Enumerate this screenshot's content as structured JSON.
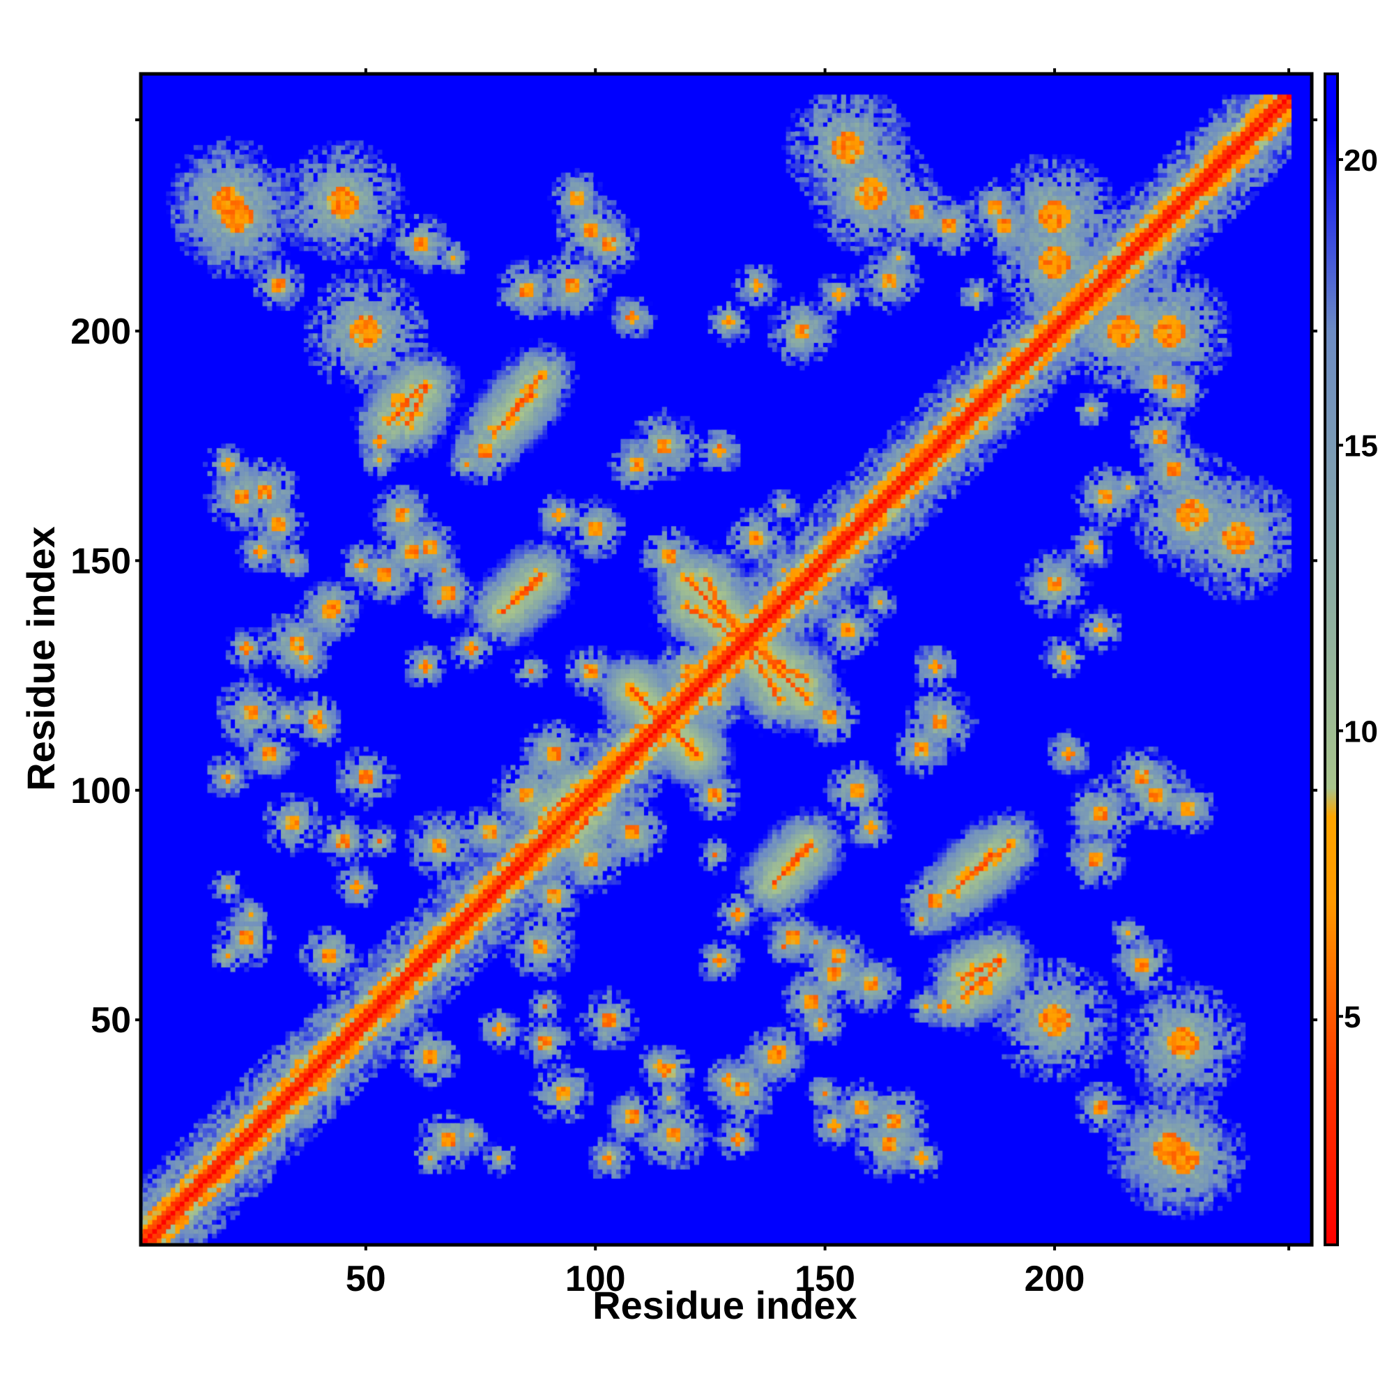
{
  "chart_data": {
    "type": "heatmap",
    "title": "",
    "xlabel": "Residue index",
    "ylabel": "Residue index",
    "n_residues": 251,
    "xlim": [
      1,
      256
    ],
    "ylim": [
      1,
      256
    ],
    "x_ticks": [
      50,
      100,
      150,
      200
    ],
    "y_ticks": [
      50,
      100,
      150,
      200
    ],
    "colorbar": {
      "ticks": [
        5,
        10,
        15,
        20
      ],
      "range": [
        1,
        21.5
      ],
      "colors": [
        {
          "value": 1,
          "color": "#ff0000"
        },
        {
          "value": 4,
          "color": "#ff3a00"
        },
        {
          "value": 7,
          "color": "#ff9900"
        },
        {
          "value": 8.5,
          "color": "#ffa500"
        },
        {
          "value": 9,
          "color": "#a8c48c"
        },
        {
          "value": 12,
          "color": "#8fb0a0"
        },
        {
          "value": 17,
          "color": "#6d8cc4"
        },
        {
          "value": 20.5,
          "color": "#0000ff"
        }
      ],
      "background_color": "#0000ff"
    },
    "contact_features": [
      {
        "kind": "diagonal",
        "description": "continuous red main diagonal i=j",
        "from": 1,
        "to": 251
      },
      {
        "kind": "anti-parallel",
        "i_range": [
          108,
          122
        ],
        "j_range": [
          108,
          122
        ],
        "center": [
          115,
          115
        ]
      },
      {
        "kind": "anti-parallel",
        "i_range": [
          120,
          146
        ],
        "j_range": [
          124,
          140
        ],
        "center": [
          130,
          130
        ]
      },
      {
        "kind": "parallel",
        "i": [
          139,
          146
        ],
        "j": [
          80,
          88
        ]
      },
      {
        "kind": "parallel",
        "i": [
          95,
          100
        ],
        "j": [
          90,
          96
        ]
      },
      {
        "kind": "parallel",
        "i": [
          180,
          188
        ],
        "j": [
          59,
          63
        ]
      },
      {
        "kind": "parallel",
        "i": [
          180,
          190
        ],
        "j": [
          80,
          88
        ]
      },
      {
        "kind": "parallel",
        "i": [
          80,
          88
        ],
        "j": [
          139,
          147
        ]
      },
      {
        "kind": "parallel",
        "i": [
          55,
          62
        ],
        "j": [
          180,
          188
        ]
      },
      {
        "kind": "parallel",
        "i": [
          78,
          86
        ],
        "j": [
          178,
          186
        ]
      },
      {
        "kind": "cluster",
        "center": [
          20,
          228
        ]
      },
      {
        "kind": "cluster",
        "center": [
          45,
          228
        ]
      },
      {
        "kind": "cluster",
        "center": [
          225,
          22
        ]
      },
      {
        "kind": "cluster",
        "center": [
          200,
          50
        ]
      },
      {
        "kind": "cluster",
        "center": [
          240,
          155
        ]
      },
      {
        "kind": "cluster",
        "center": [
          200,
          215
        ]
      },
      {
        "kind": "cluster",
        "center": [
          225,
          200
        ]
      },
      {
        "kind": "cluster",
        "center": [
          160,
          230
        ]
      }
    ]
  }
}
